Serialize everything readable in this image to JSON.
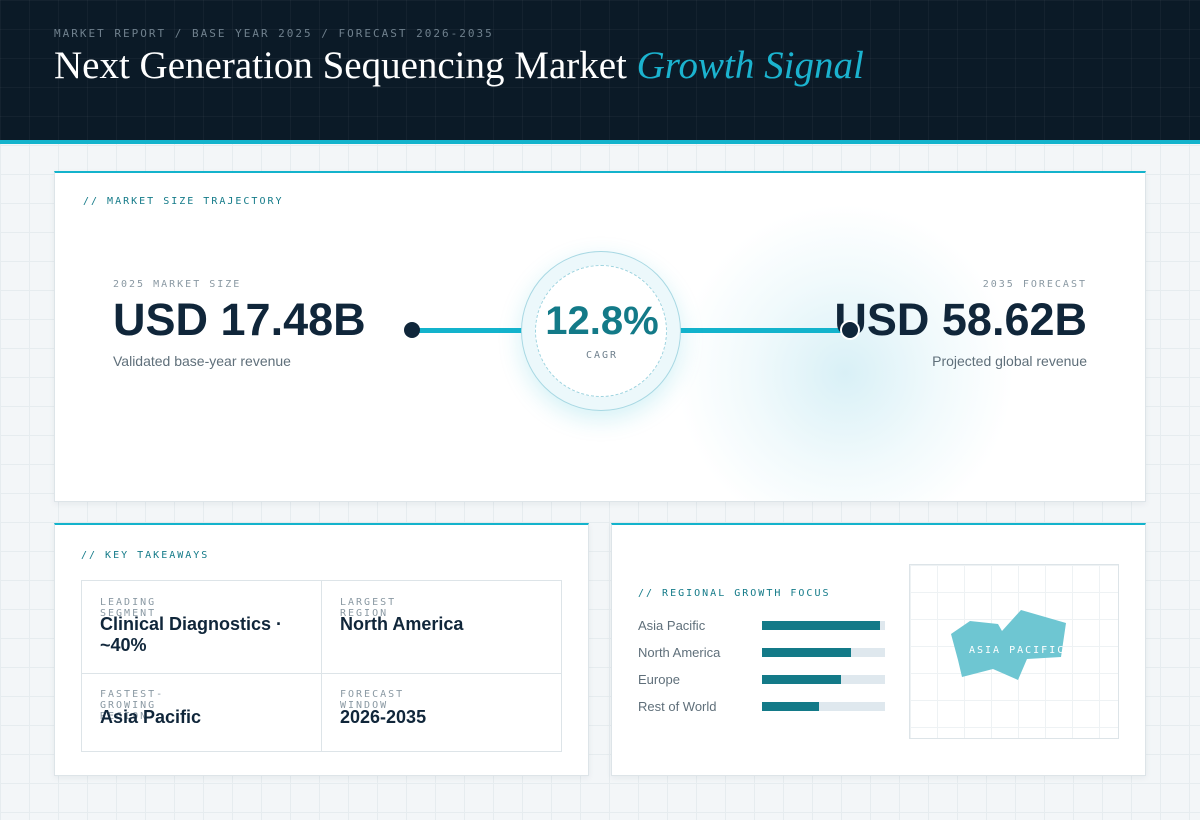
{
  "header": {
    "breadcrumb": "MARKET REPORT / BASE YEAR 2025 / FORECAST 2026-2035",
    "title_main": "Next Generation Sequencing Market ",
    "title_accent": "Growth Signal"
  },
  "trajectory": {
    "section_label": "// MARKET SIZE TRAJECTORY",
    "base": {
      "caption": "2025 MARKET SIZE",
      "value": "USD 17.48B",
      "subtitle": "Validated base-year revenue"
    },
    "forecast": {
      "caption": "2035 FORECAST",
      "value": "USD 58.62B",
      "subtitle": "Projected global revenue"
    },
    "cagr": {
      "value": "12.8%",
      "label": "CAGR"
    }
  },
  "takeaways": {
    "section_label": "// KEY TAKEAWAYS",
    "items": [
      {
        "label": "LEADING SEGMENT",
        "value": "Clinical Diagnostics · ~40%"
      },
      {
        "label": "LARGEST REGION",
        "value": "North America"
      },
      {
        "label": "FASTEST-GROWING REGION",
        "value": "Asia Pacific"
      },
      {
        "label": "FORECAST WINDOW",
        "value": "2026-2035"
      }
    ]
  },
  "regional": {
    "section_label": "// REGIONAL GROWTH FOCUS",
    "bars": [
      {
        "name": "Asia Pacific",
        "share": 0.96
      },
      {
        "name": "North America",
        "share": 0.72
      },
      {
        "name": "Europe",
        "share": 0.64
      },
      {
        "name": "Rest of World",
        "share": 0.46
      }
    ],
    "map_label": "ASIA PACIFIC"
  },
  "colors": {
    "accent": "#13b3cc",
    "accent_dark": "#137a88",
    "navy": "#10263a",
    "header_bg": "#0b1a27",
    "map_shape": "#6ec6d2"
  }
}
